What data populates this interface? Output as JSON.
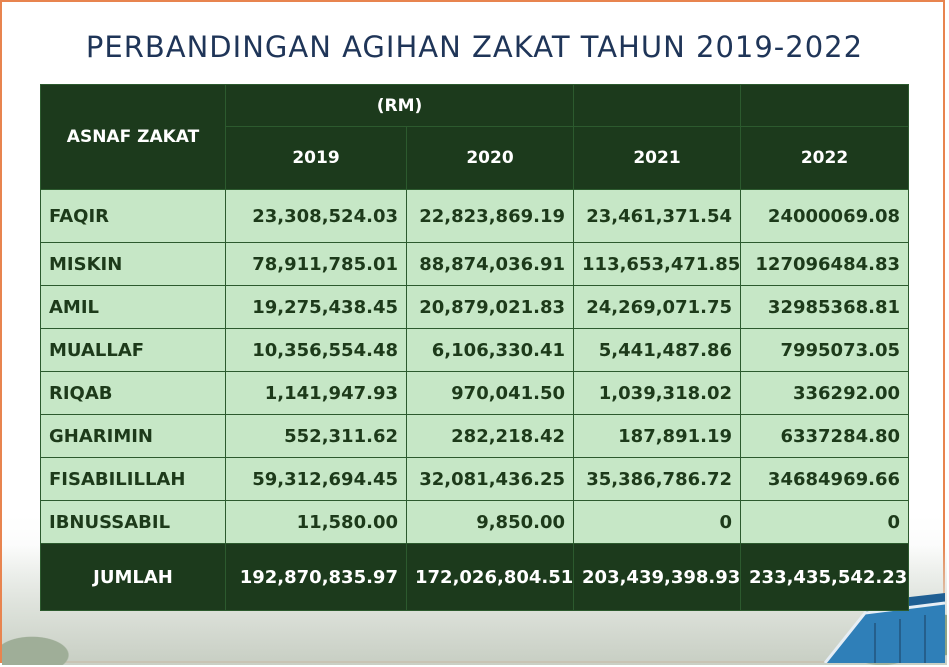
{
  "title": "PERBANDINGAN AGIHAN ZAKAT TAHUN 2019-2022",
  "table": {
    "label_header": "ASNAF ZAKAT",
    "unit_header": "(RM)",
    "years": [
      "2019",
      "2020",
      "2021",
      "2022"
    ],
    "rows": [
      {
        "label": "FAQIR",
        "values": [
          "23,308,524.03",
          "22,823,869.19",
          "23,461,371.54",
          "24000069.08"
        ]
      },
      {
        "label": "MISKIN",
        "values": [
          "78,911,785.01",
          "88,874,036.91",
          "113,653,471.85",
          "127096484.83"
        ]
      },
      {
        "label": "AMIL",
        "values": [
          "19,275,438.45",
          "20,879,021.83",
          "24,269,071.75",
          "32985368.81"
        ]
      },
      {
        "label": "MUALLAF",
        "values": [
          "10,356,554.48",
          "6,106,330.41",
          "5,441,487.86",
          "7995073.05"
        ]
      },
      {
        "label": "RIQAB",
        "values": [
          "1,141,947.93",
          "970,041.50",
          "1,039,318.02",
          "336292.00"
        ]
      },
      {
        "label": "GHARIMIN",
        "values": [
          "552,311.62",
          "282,218.42",
          "187,891.19",
          "6337284.80"
        ]
      },
      {
        "label": "FISABILILLAH",
        "values": [
          "59,312,694.45",
          "32,081,436.25",
          "35,386,786.72",
          "34684969.66"
        ]
      },
      {
        "label": "IBNUSSABIL",
        "values": [
          "11,580.00",
          "9,850.00",
          "0",
          "0"
        ]
      }
    ],
    "total": {
      "label": "JUMLAH",
      "values": [
        "192,870,835.97",
        "172,026,804.51",
        "203,439,398.93",
        "233,435,542.23"
      ]
    }
  }
}
